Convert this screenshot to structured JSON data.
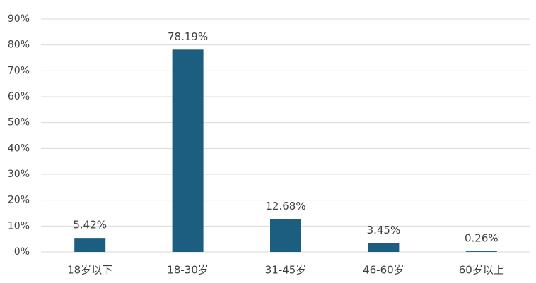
{
  "chart_data": {
    "type": "bar",
    "categories": [
      "18岁以下",
      "18-30岁",
      "31-45岁",
      "46-60岁",
      "60岁以上"
    ],
    "values": [
      5.42,
      78.19,
      12.68,
      3.45,
      0.26
    ],
    "value_labels": [
      "5.42%",
      "78.19%",
      "12.68%",
      "3.45%",
      "0.26%"
    ],
    "color": "#1b5e80",
    "ylim": [
      0,
      90
    ],
    "yticks": [
      {
        "value": 0,
        "label": "0%"
      },
      {
        "value": 10,
        "label": "10%"
      },
      {
        "value": 20,
        "label": "20%"
      },
      {
        "value": 30,
        "label": "30%"
      },
      {
        "value": 40,
        "label": "40%"
      },
      {
        "value": 50,
        "label": "50%"
      },
      {
        "value": 60,
        "label": "60%"
      },
      {
        "value": 70,
        "label": "70%"
      },
      {
        "value": 80,
        "label": "80%"
      },
      {
        "value": 90,
        "label": "90%"
      }
    ],
    "grid": true
  }
}
